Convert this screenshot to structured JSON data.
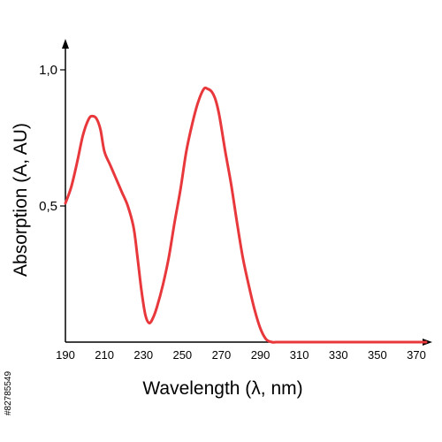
{
  "chart_data": {
    "type": "line",
    "xlabel": "Wavelength (λ, nm)",
    "ylabel": "Absorption (A, AU)",
    "xlim": [
      190,
      375
    ],
    "ylim": [
      0,
      1.0
    ],
    "x_ticks": [
      "190",
      "210",
      "230",
      "250",
      "270",
      "290",
      "310",
      "330",
      "350",
      "370"
    ],
    "y_ticks": [
      "0,5",
      "1,0"
    ],
    "series": [
      {
        "color": "#e8383c",
        "x": [
          190,
          193,
          196,
          199,
          202,
          204,
          206,
          208,
          210,
          213,
          216,
          219,
          222,
          225,
          227,
          229,
          231,
          233,
          235,
          237,
          240,
          243,
          246,
          249,
          252,
          255,
          258,
          261,
          263,
          265,
          267,
          269,
          272,
          275,
          278,
          281,
          284,
          287,
          290,
          293,
          296,
          298,
          300,
          310,
          330,
          350,
          370,
          375
        ],
        "y": [
          0.51,
          0.57,
          0.66,
          0.76,
          0.82,
          0.83,
          0.82,
          0.78,
          0.7,
          0.65,
          0.6,
          0.55,
          0.5,
          0.42,
          0.31,
          0.19,
          0.1,
          0.07,
          0.09,
          0.13,
          0.21,
          0.31,
          0.44,
          0.56,
          0.7,
          0.8,
          0.88,
          0.93,
          0.93,
          0.92,
          0.89,
          0.83,
          0.7,
          0.58,
          0.44,
          0.31,
          0.21,
          0.12,
          0.05,
          0.01,
          0.0,
          0.0,
          0.0,
          0.0,
          0.0,
          0.0,
          0.0,
          0.0
        ]
      }
    ]
  },
  "watermark": "#82785549"
}
